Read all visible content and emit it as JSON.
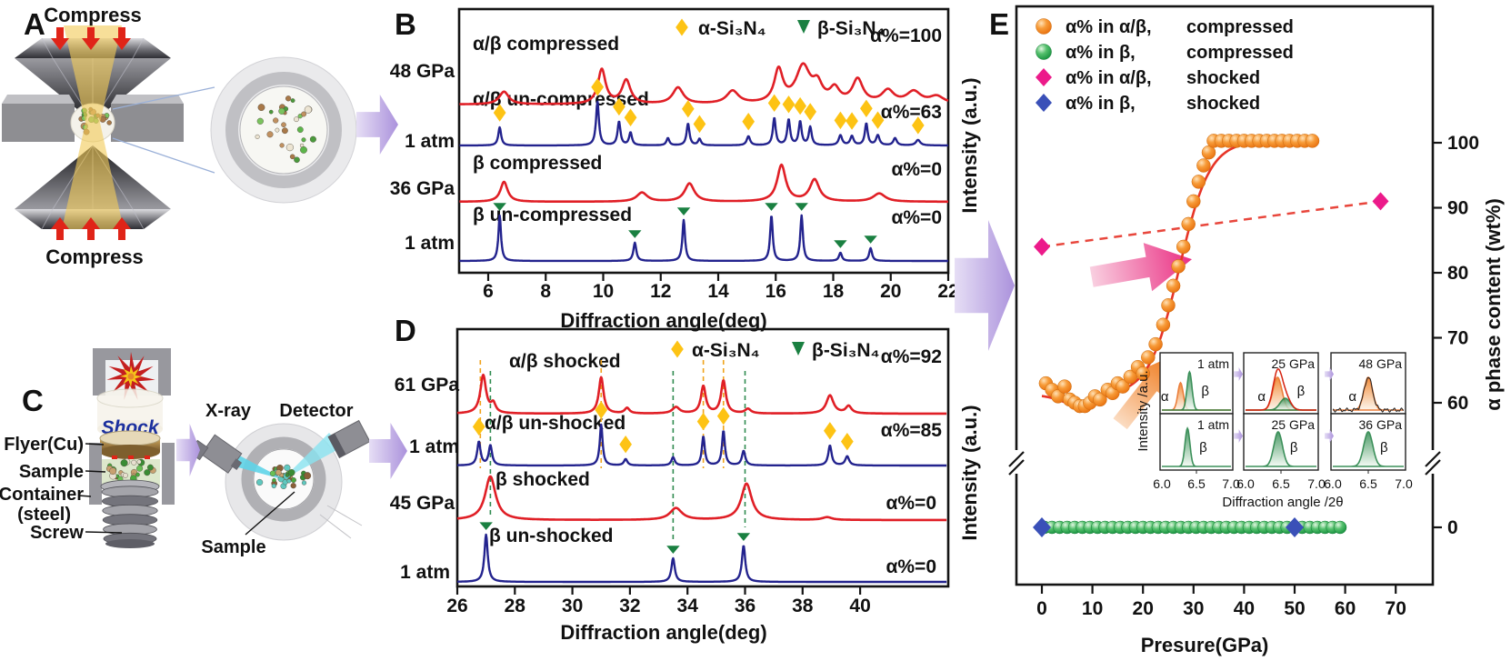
{
  "panelA": {
    "label": "A",
    "compress_top": "Compress",
    "compress_bottom": "Compress"
  },
  "panelC": {
    "label": "C",
    "shock": "Shock",
    "flyer": "Flyer(Cu)",
    "sample": "Sample",
    "container": "Container",
    "container2": "(steel)",
    "screw": "Screw",
    "xray": "X-ray",
    "detector": "Detector",
    "sample_pointer": "Sample"
  },
  "chart_data": [
    {
      "id": "B",
      "label": "B",
      "type": "line",
      "xlabel": "Diffraction angle(deg)",
      "ylabel": "Intensity (a.u.)",
      "xlim": [
        5,
        22
      ],
      "x_ticks": [
        6,
        8,
        10,
        12,
        14,
        16,
        18,
        20,
        22
      ],
      "legend": [
        {
          "marker": "diamond-yellow",
          "label": "α-Si₃N₄"
        },
        {
          "marker": "triangle-green",
          "label": "β-Si₃N₄"
        }
      ],
      "series": [
        {
          "label": "α/β compressed",
          "pressure": "48 GPa",
          "alpha_content": "α%=100",
          "color": "#e01f26",
          "peaks": [
            [
              6.55,
              14,
              0.2
            ],
            [
              9.95,
              38,
              0.16
            ],
            [
              10.8,
              26,
              0.18
            ],
            [
              12.6,
              18,
              0.22
            ],
            [
              14.5,
              14,
              0.25
            ],
            [
              16.1,
              36,
              0.18
            ],
            [
              16.95,
              40,
              0.3
            ],
            [
              17.45,
              18,
              0.2
            ],
            [
              18.05,
              15,
              0.2
            ],
            [
              18.85,
              26,
              0.22
            ],
            [
              19.9,
              14,
              0.25
            ],
            [
              20.8,
              13,
              0.3
            ],
            [
              21.6,
              8,
              0.3
            ]
          ]
        },
        {
          "label": "α/β un-compressed",
          "pressure": "1 atm",
          "alpha_content": "α%=63",
          "color": "#23238e",
          "peaks": [
            [
              6.4,
              20,
              0.06
            ],
            [
              9.8,
              48,
              0.06
            ],
            [
              10.55,
              26,
              0.06
            ],
            [
              10.95,
              14,
              0.06
            ],
            [
              12.25,
              8,
              0.06
            ],
            [
              12.95,
              24,
              0.06
            ],
            [
              13.35,
              7,
              0.06
            ],
            [
              15.05,
              10,
              0.07
            ],
            [
              15.95,
              30,
              0.06
            ],
            [
              16.45,
              28,
              0.06
            ],
            [
              16.85,
              26,
              0.06
            ],
            [
              17.2,
              20,
              0.06
            ],
            [
              18.25,
              11,
              0.07
            ],
            [
              18.65,
              10,
              0.07
            ],
            [
              19.15,
              24,
              0.06
            ],
            [
              19.55,
              11,
              0.07
            ],
            [
              20.15,
              8,
              0.07
            ],
            [
              20.95,
              6,
              0.09
            ]
          ],
          "alpha_markers": [
            6.4,
            9.8,
            10.55,
            10.95,
            12.95,
            13.35,
            15.05,
            15.95,
            16.45,
            16.85,
            17.2,
            18.25,
            18.65,
            19.15,
            19.55,
            20.95
          ]
        },
        {
          "label": "β compressed",
          "pressure": "36 GPa",
          "alpha_content": "α%=0",
          "color": "#e01f26",
          "peaks": [
            [
              6.55,
              22,
              0.15
            ],
            [
              11.35,
              10,
              0.22
            ],
            [
              13.0,
              20,
              0.2
            ],
            [
              16.2,
              40,
              0.18
            ],
            [
              17.35,
              24,
              0.2
            ],
            [
              19.6,
              9,
              0.25
            ]
          ]
        },
        {
          "label": "β un-compressed",
          "pressure": "1 atm",
          "alpha_content": "α%=0",
          "color": "#23238e",
          "peaks": [
            [
              6.4,
              50,
              0.055
            ],
            [
              11.1,
              20,
              0.06
            ],
            [
              12.8,
              45,
              0.055
            ],
            [
              15.85,
              50,
              0.055
            ],
            [
              16.9,
              50,
              0.055
            ],
            [
              18.25,
              9,
              0.06
            ],
            [
              19.3,
              14,
              0.06
            ]
          ],
          "beta_markers": [
            6.4,
            11.1,
            12.8,
            15.85,
            16.9,
            18.25,
            19.3
          ]
        }
      ]
    },
    {
      "id": "D",
      "label": "D",
      "type": "line",
      "xlabel": "Diffraction angle(deg)",
      "ylabel": "Intensity (a.u.)",
      "xlim": [
        26,
        43
      ],
      "x_ticks": [
        26,
        28,
        30,
        32,
        34,
        36,
        38,
        40
      ],
      "legend": [
        {
          "marker": "diamond-yellow",
          "label": "α-Si₃N₄"
        },
        {
          "marker": "triangle-green",
          "label": "β-Si₃N₄"
        }
      ],
      "guides_alpha": [
        26.8,
        31.0,
        34.55,
        35.25
      ],
      "guides_beta": [
        27.15,
        33.5,
        36.0
      ],
      "series": [
        {
          "label": "α/β shocked",
          "pressure": "61 GPa",
          "alpha_content": "α%=92",
          "color": "#e01f26",
          "peaks": [
            [
              26.9,
              42,
              0.12
            ],
            [
              27.25,
              10,
              0.1
            ],
            [
              31.0,
              40,
              0.1
            ],
            [
              31.9,
              6,
              0.1
            ],
            [
              33.6,
              7,
              0.15
            ],
            [
              34.55,
              30,
              0.1
            ],
            [
              35.25,
              36,
              0.1
            ],
            [
              36.1,
              5,
              0.12
            ],
            [
              38.95,
              20,
              0.15
            ],
            [
              39.6,
              8,
              0.12
            ]
          ]
        },
        {
          "label": "α/β un-shocked",
          "pressure": "1 atm",
          "alpha_content": "α%=85",
          "color": "#23238e",
          "peaks": [
            [
              26.75,
              26,
              0.07
            ],
            [
              27.15,
              22,
              0.07
            ],
            [
              31.0,
              45,
              0.06
            ],
            [
              31.85,
              7,
              0.07
            ],
            [
              33.5,
              9,
              0.07
            ],
            [
              34.55,
              32,
              0.06
            ],
            [
              35.25,
              38,
              0.06
            ],
            [
              35.95,
              16,
              0.07
            ],
            [
              38.95,
              22,
              0.07
            ],
            [
              39.55,
              10,
              0.08
            ]
          ],
          "alpha_markers": [
            26.75,
            31.0,
            31.85,
            34.55,
            35.25,
            38.95,
            39.55
          ]
        },
        {
          "label": "β shocked",
          "pressure": "45 GPa",
          "alpha_content": "α%=0",
          "color": "#e01f26",
          "peaks": [
            [
              27.15,
              48,
              0.22
            ],
            [
              33.6,
              13,
              0.25
            ],
            [
              36.05,
              40,
              0.22
            ],
            [
              38.85,
              3,
              0.2
            ]
          ]
        },
        {
          "label": "β un-shocked",
          "pressure": "1 atm",
          "alpha_content": "α%=0",
          "color": "#23238e",
          "peaks": [
            [
              27.0,
              52,
              0.07
            ],
            [
              33.5,
              26,
              0.07
            ],
            [
              35.95,
              40,
              0.07
            ]
          ],
          "beta_markers": [
            27.0,
            33.5,
            35.95
          ]
        }
      ]
    },
    {
      "id": "E",
      "label": "E",
      "type": "scatter",
      "xlabel": "Presure(GPa)",
      "ylabel": "α phase content (wt%)",
      "xlim": [
        -4,
        75
      ],
      "x_ticks": [
        0,
        10,
        20,
        30,
        40,
        50,
        60,
        70
      ],
      "y_ticks": [
        100,
        90,
        80,
        70,
        60,
        0
      ],
      "axis_break": true,
      "legend": [
        {
          "marker": "sphere-orange",
          "label": "α% in α/β,",
          "condition": "compressed"
        },
        {
          "marker": "sphere-green",
          "label": "α% in β,",
          "condition": "compressed"
        },
        {
          "marker": "diamond-pink",
          "label": "α% in α/β,",
          "condition": "shocked"
        },
        {
          "marker": "diamond-blue",
          "label": "α% in β,",
          "condition": "shocked"
        }
      ],
      "series": [
        {
          "name": "α% in α/β, compressed",
          "marker": "sphere-orange",
          "points": [
            [
              0.8,
              63
            ],
            [
              2,
              62
            ],
            [
              3.2,
              61
            ],
            [
              4.5,
              62.5
            ],
            [
              5.5,
              60.5
            ],
            [
              6.5,
              60
            ],
            [
              7.5,
              59.5
            ],
            [
              8.5,
              59.5
            ],
            [
              9.5,
              60
            ],
            [
              10.5,
              61
            ],
            [
              11.5,
              60.5
            ],
            [
              13,
              62
            ],
            [
              14,
              61.5
            ],
            [
              15,
              63
            ],
            [
              16,
              62.5
            ],
            [
              17.5,
              64
            ],
            [
              19,
              65.5
            ],
            [
              20,
              64.5
            ],
            [
              21,
              67
            ],
            [
              22.5,
              69
            ],
            [
              24,
              72
            ],
            [
              25,
              75
            ],
            [
              26,
              78
            ],
            [
              27,
              81
            ],
            [
              28,
              84
            ],
            [
              29,
              87.5
            ],
            [
              30,
              91
            ],
            [
              31,
              94
            ],
            [
              32,
              96.5
            ],
            [
              33,
              98.5
            ],
            [
              34,
              100.3
            ],
            [
              35.5,
              100.3
            ],
            [
              37,
              100.3
            ],
            [
              38.5,
              100.3
            ],
            [
              40,
              100.3
            ],
            [
              41.5,
              100.3
            ],
            [
              43,
              100.3
            ],
            [
              44.5,
              100.3
            ],
            [
              46,
              100.3
            ],
            [
              47.5,
              100.3
            ],
            [
              49,
              100.3
            ],
            [
              50.5,
              100.3
            ],
            [
              52,
              100.3
            ],
            [
              53.5,
              100.3
            ]
          ]
        },
        {
          "name": "α% in β, compressed",
          "marker": "sphere-green",
          "points": [
            [
              0.5,
              0
            ],
            [
              2,
              0
            ],
            [
              3.5,
              0
            ],
            [
              5,
              0
            ],
            [
              6.5,
              0
            ],
            [
              8,
              0
            ],
            [
              9.5,
              0
            ],
            [
              11,
              0
            ],
            [
              12.5,
              0
            ],
            [
              14,
              0
            ],
            [
              15.5,
              0
            ],
            [
              17,
              0
            ],
            [
              18.5,
              0
            ],
            [
              20,
              0
            ],
            [
              21.5,
              0
            ],
            [
              23,
              0
            ],
            [
              24.5,
              0
            ],
            [
              26,
              0
            ],
            [
              27.5,
              0
            ],
            [
              29,
              0
            ],
            [
              30.5,
              0
            ],
            [
              32,
              0
            ],
            [
              33.5,
              0
            ],
            [
              35,
              0
            ],
            [
              36.5,
              0
            ],
            [
              38,
              0
            ],
            [
              39.5,
              0
            ],
            [
              41,
              0
            ],
            [
              42.5,
              0
            ],
            [
              44,
              0
            ],
            [
              45.5,
              0
            ],
            [
              47,
              0
            ],
            [
              48.5,
              0
            ],
            [
              50,
              0
            ],
            [
              51.5,
              0
            ],
            [
              53,
              0
            ],
            [
              54.5,
              0
            ],
            [
              56,
              0
            ],
            [
              57.5,
              0
            ],
            [
              59,
              0
            ]
          ]
        },
        {
          "name": "α% in α/β, shocked",
          "marker": "diamond-pink",
          "line": "dashed",
          "points": [
            [
              0,
              84
            ],
            [
              67,
              91
            ]
          ]
        },
        {
          "name": "α% in β, shocked",
          "marker": "diamond-blue",
          "points": [
            [
              0,
              0
            ],
            [
              50,
              0
            ]
          ]
        }
      ],
      "fit": {
        "base": 61.2,
        "amp": 39.1,
        "x0": 27.2,
        "k": 3.0,
        "dip_amp": 1.6,
        "dip_x0": 7.5,
        "dip_w": 5.0,
        "range": [
          0,
          53
        ]
      },
      "inset": {
        "ylabel": "Intensity /a.u.",
        "xlabel": "Diffraction angle /2θ",
        "x_ticks": [
          "6.0",
          "6.5",
          "7.0"
        ],
        "alpha_symbol": "α",
        "beta_symbol": "β",
        "panels": [
          {
            "label": "1 atm",
            "curves": [
              {
                "phase": "alpha",
                "pos": 6.27,
                "h": 30,
                "w": 0.055
              },
              {
                "phase": "beta",
                "pos": 6.4,
                "h": 42,
                "w": 0.05
              }
            ]
          },
          {
            "label": "25 GPa",
            "envelope": true,
            "curves": [
              {
                "phase": "alpha",
                "pos": 6.45,
                "h": 36,
                "w": 0.09
              },
              {
                "phase": "beta",
                "pos": 6.56,
                "h": 13,
                "w": 0.1
              }
            ]
          },
          {
            "label": "48 GPa",
            "noisy": true,
            "curves": [
              {
                "phase": "alpha",
                "pos": 6.5,
                "h": 36,
                "w": 0.085
              }
            ]
          },
          {
            "label": "1 atm",
            "curves": [
              {
                "phase": "beta",
                "pos": 6.37,
                "h": 42,
                "w": 0.05
              }
            ]
          },
          {
            "label": "25 GPa",
            "curves": [
              {
                "phase": "beta",
                "pos": 6.46,
                "h": 38,
                "w": 0.085
              }
            ]
          },
          {
            "label": "36 GPa",
            "curves": [
              {
                "phase": "beta",
                "pos": 6.5,
                "h": 38,
                "w": 0.09
              }
            ]
          }
        ]
      }
    }
  ]
}
